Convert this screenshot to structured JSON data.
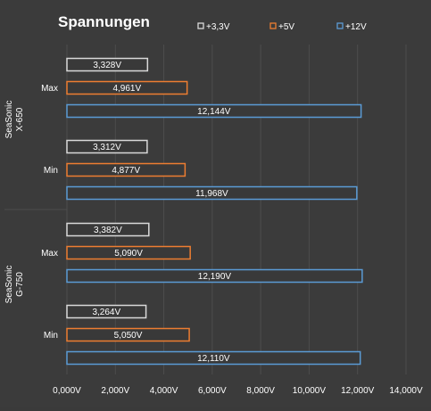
{
  "chart_data": {
    "type": "bar",
    "orientation": "horizontal",
    "title": "Spannungen",
    "xlim": [
      0,
      14
    ],
    "x_ticks": [
      0,
      2,
      4,
      6,
      8,
      10,
      12,
      14
    ],
    "x_tick_labels": [
      "0,000V",
      "2,000V",
      "4,000V",
      "6,000V",
      "8,000V",
      "10,000V",
      "12,000V",
      "14,000V"
    ],
    "grid": "vertical",
    "legend_position": "top",
    "groups": [
      {
        "label": "SeaSonic X-650",
        "categories": [
          "Max",
          "Min"
        ]
      },
      {
        "label": "SeaSonic G-750",
        "categories": [
          "Max",
          "Min"
        ]
      }
    ],
    "series": [
      {
        "name": "+3,3V",
        "color": "#d9d9d9",
        "values": [
          3.328,
          3.312,
          3.382,
          3.264
        ],
        "labels": [
          "3,328V",
          "3,312V",
          "3,382V",
          "3,264V"
        ]
      },
      {
        "name": "+5V",
        "color": "#ed7d31",
        "values": [
          4.961,
          4.877,
          5.09,
          5.05
        ],
        "labels": [
          "4,961V",
          "4,877V",
          "5,090V",
          "5,050V"
        ]
      },
      {
        "name": "+12V",
        "color": "#5b9bd5",
        "values": [
          12.144,
          11.968,
          12.19,
          12.11
        ],
        "labels": [
          "12,144V",
          "11,968V",
          "12,190V",
          "12,110V"
        ]
      }
    ]
  }
}
